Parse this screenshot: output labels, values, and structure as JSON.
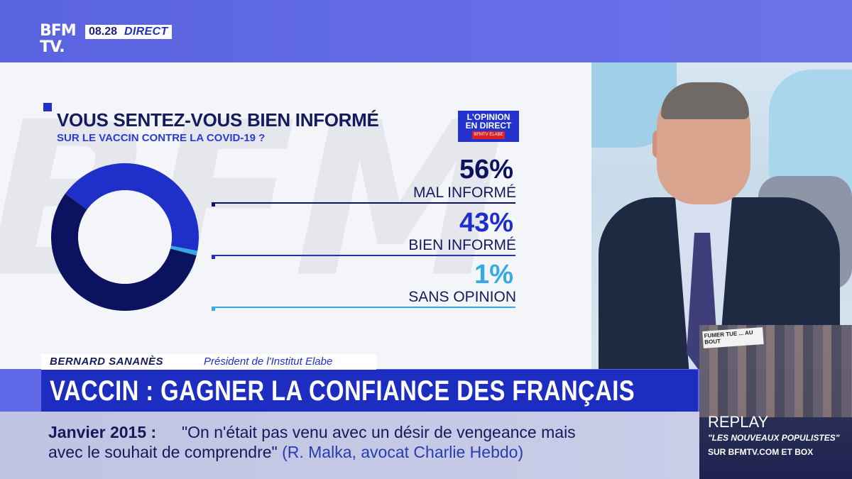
{
  "header": {
    "logo": "BFM TV.",
    "time": "08.28",
    "live": "DIRECT"
  },
  "badge": {
    "line1": "L'OPINION",
    "line2": "EN DIRECT",
    "line3": "BFMTV ELABE"
  },
  "chart_data": {
    "type": "pie",
    "style": "donut",
    "title": "VOUS SENTEZ-VOUS BIEN INFORMÉ",
    "subtitle": "SUR LE VACCIN CONTRE LA COVID-19 ?",
    "categories": [
      "MAL INFORMÉ",
      "BIEN INFORMÉ",
      "SANS OPINION"
    ],
    "values": [
      56,
      43,
      1
    ],
    "labels": [
      "56%",
      "43%",
      "1%"
    ],
    "colors": [
      "#0b1361",
      "#1f2fc9",
      "#35a9e6"
    ]
  },
  "lower_third": {
    "name": "BERNARD SANANÈS",
    "role": "Président de l'Institut Elabe",
    "headline": "VACCIN : GAGNER LA CONFIANCE DES FRANÇAIS"
  },
  "ticker": {
    "date": "Janvier 2015 :",
    "line1": "\"On n'était pas venu avec un désir de vengeance mais",
    "line2": "avec le souhait de comprendre\"",
    "source": "(R. Malka, avocat Charlie Hebdo)"
  },
  "replay": {
    "title": "REPLAY",
    "program": "\"LES NOUVEAUX POPULISTES\"",
    "where": "SUR BFMTV.COM ET BOX",
    "sign_text": "FUMER TUE ... AU BOUT"
  }
}
